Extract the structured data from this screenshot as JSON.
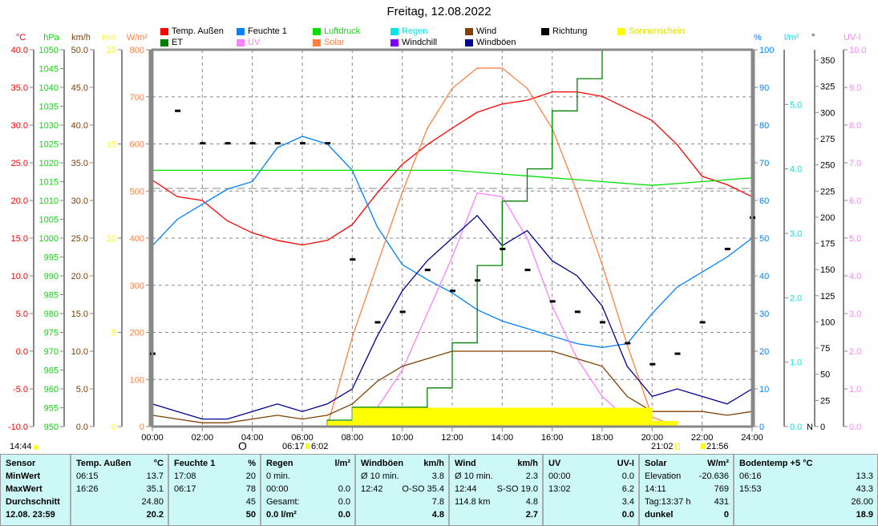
{
  "title": "Freitag, 12.08.2022",
  "legend": [
    {
      "label": "Temp. Außen",
      "color": "#ff0000"
    },
    {
      "label": "Feuchte 1",
      "color": "#0080ff"
    },
    {
      "label": "Luftdruck",
      "color": "#00e000"
    },
    {
      "label": "Regen",
      "color": "#00e8e8"
    },
    {
      "label": "Wind",
      "color": "#804000"
    },
    {
      "label": "Richtung",
      "color": "#000000"
    },
    {
      "label": "Sonnenschein",
      "color": "#ffff00"
    },
    {
      "label": "ET",
      "color": "#008000"
    },
    {
      "label": "UV",
      "color": "#ff80ff"
    },
    {
      "label": "Solar",
      "color": "#ff8040"
    },
    {
      "label": "Windchill",
      "color": "#8000ff"
    },
    {
      "label": "Windböen",
      "color": "#000090"
    }
  ],
  "chart_data": {
    "type": "line",
    "title": "Freitag, 12.08.2022",
    "grid": true,
    "legend_placement": "top",
    "x": [
      "00:00",
      "01:00",
      "02:00",
      "03:00",
      "04:00",
      "05:00",
      "06:00",
      "07:00",
      "08:00",
      "09:00",
      "10:00",
      "11:00",
      "12:00",
      "13:00",
      "14:00",
      "15:00",
      "16:00",
      "17:00",
      "18:00",
      "19:00",
      "20:00",
      "21:00",
      "22:00",
      "23:00",
      "24:00"
    ],
    "x_ticks": [
      "00:00",
      "02:00",
      "04:00",
      "06:00",
      "08:00",
      "10:00",
      "12:00",
      "14:00",
      "16:00",
      "18:00",
      "20:00",
      "22:00",
      "24:00"
    ],
    "axes": [
      {
        "unit": "°C",
        "min": -10,
        "max": 40,
        "step": 5,
        "dec": 1,
        "color": "#ff0000"
      },
      {
        "unit": "hPa",
        "min": 950,
        "max": 1050,
        "step": 5,
        "dec": 0,
        "color": "#00e000"
      },
      {
        "unit": "km/h",
        "min": 0,
        "max": 50,
        "step": 5,
        "dec": 1,
        "color": "#804000"
      },
      {
        "unit": "min",
        "min": 0,
        "max": 20,
        "step": 5,
        "dec": 0,
        "color": "#ffff00"
      },
      {
        "unit": "W/m²",
        "min": 0,
        "max": 800,
        "step": 100,
        "dec": 0,
        "color": "#ff8040"
      },
      {
        "unit": "%",
        "min": 0,
        "max": 100,
        "step": 10,
        "dec": 0,
        "color": "#0080ff"
      },
      {
        "unit": "l/m²",
        "min": 0,
        "max": 5.85,
        "step": 1,
        "dec": 1,
        "color": "#00e8e8"
      },
      {
        "unit": "°",
        "min": 0,
        "max": 360,
        "step": 25,
        "dec": 0,
        "color": "#000000",
        "last": 350,
        "extra": "N"
      },
      {
        "unit": "UV-I",
        "min": 0,
        "max": 10,
        "step": 1,
        "dec": 1,
        "color": "#ff80ff"
      }
    ],
    "series": [
      {
        "name": "Temp. Außen",
        "axis": 0,
        "color": "#ff0000",
        "values": [
          22.7,
          20.5,
          20,
          17.3,
          15.7,
          14.7,
          14.1,
          14.7,
          16.8,
          21,
          24.8,
          27.4,
          29.6,
          31.7,
          32.8,
          33.3,
          34.4,
          34.4,
          33.8,
          32.2,
          30.6,
          27.4,
          23.2,
          22.1,
          20.5
        ]
      },
      {
        "name": "Feuchte 1",
        "axis": 5,
        "color": "#0080ff",
        "values": [
          48,
          55,
          59,
          63,
          65,
          74,
          77,
          75,
          68,
          53,
          43,
          39,
          35.5,
          31,
          28,
          26,
          24,
          22,
          21,
          22,
          30,
          37,
          41,
          45,
          50
        ]
      },
      {
        "name": "Luftdruck",
        "axis": 1,
        "color": "#00e000",
        "values": [
          1018,
          1018,
          1018,
          1018,
          1018,
          1018,
          1018,
          1018,
          1018,
          1018,
          1018,
          1018,
          1018,
          1017.5,
          1017,
          1016.5,
          1016,
          1015.5,
          1015,
          1014.5,
          1014,
          1014.5,
          1015,
          1015.5,
          1016
        ]
      },
      {
        "name": "Solar",
        "axis": 4,
        "color": "#ff8040",
        "values": [
          0,
          0,
          0,
          0,
          0,
          0,
          0,
          0,
          190,
          344,
          497,
          633,
          718,
          761,
          761,
          718,
          633,
          497,
          344,
          174,
          20,
          0,
          0,
          0,
          0
        ]
      },
      {
        "name": "UV",
        "axis": 8,
        "color": "#ff80ff",
        "values": [
          0,
          0,
          0,
          0,
          0,
          0,
          0,
          0,
          0,
          0.5,
          1.5,
          3.0,
          4.5,
          6.2,
          6.1,
          5.0,
          3.2,
          1.8,
          0.8,
          0.2,
          0,
          0,
          0,
          0,
          0
        ]
      },
      {
        "name": "Windböen",
        "axis": 2,
        "color": "#000090",
        "values": [
          3,
          2,
          1,
          1,
          2,
          3,
          2,
          3,
          5,
          12,
          18,
          22,
          25,
          28,
          24,
          26,
          22,
          20,
          16,
          8,
          4,
          5,
          4,
          3,
          5
        ]
      },
      {
        "name": "Wind",
        "axis": 2,
        "color": "#804000",
        "values": [
          1.5,
          1,
          0.5,
          0.5,
          1,
          1.5,
          1,
          1.5,
          3,
          6,
          8,
          9,
          10,
          10,
          10,
          10,
          10,
          9,
          8,
          4,
          2,
          2,
          2,
          1.5,
          2
        ]
      },
      {
        "name": "ET",
        "axis": 6,
        "color": "#008000",
        "step": true,
        "values": [
          0,
          0,
          0,
          0,
          0,
          0,
          0,
          0.1,
          0.3,
          0.3,
          0.3,
          0.6,
          1.3,
          2.5,
          3.5,
          4.0,
          4.9,
          5.4,
          5.85,
          5.85,
          5.85,
          5.85,
          5.85,
          5.85,
          5.85
        ]
      },
      {
        "name": "Sonnenschein",
        "axis": 3,
        "color": "#ffff00",
        "bars": true,
        "values": [
          0,
          0,
          0,
          0,
          0,
          0,
          0,
          0.3,
          1,
          1,
          1,
          1,
          1,
          1,
          1,
          1,
          1,
          1,
          1,
          1,
          0.3,
          0,
          0,
          0,
          0
        ]
      },
      {
        "name": "Richtung",
        "axis": 7,
        "color": "#000000",
        "dots": true,
        "values": [
          70,
          302,
          271,
          271,
          271,
          271,
          271,
          271,
          160,
          100,
          110,
          150,
          130,
          140,
          170,
          150,
          120,
          110,
          100,
          80,
          60,
          70,
          100,
          170,
          200
        ]
      }
    ]
  },
  "astro": {
    "moonrise": "14:44",
    "moon_phase": "O",
    "sunrise_a": "06:17",
    "sunrise_b": "6:02",
    "sunset_a": "21:02",
    "moonset": "21:56"
  },
  "table": [
    {
      "rows": [
        [
          "Sensor",
          ""
        ],
        [
          "MinWert",
          ""
        ],
        [
          "MaxWert",
          ""
        ],
        [
          "Durchschnitt",
          ""
        ],
        [
          "12.08. 23:59",
          ""
        ]
      ]
    },
    {
      "rows": [
        [
          "Temp. Außen",
          "°C"
        ],
        [
          "06:15",
          "13.7"
        ],
        [
          "16:26",
          "35.1"
        ],
        [
          "",
          "24.80"
        ],
        [
          "",
          "20.2"
        ]
      ]
    },
    {
      "rows": [
        [
          "Feuchte 1",
          "%"
        ],
        [
          "17:08",
          "20"
        ],
        [
          "06:17",
          "78"
        ],
        [
          "",
          "45"
        ],
        [
          "",
          "50"
        ]
      ]
    },
    {
      "rows": [
        [
          "Regen",
          "l/m²"
        ],
        [
          "0 min.",
          ""
        ],
        [
          "00:00",
          "0.0"
        ],
        [
          "Gesamt:",
          "0.0"
        ],
        [
          "0.0 l/m²",
          "0.0"
        ]
      ]
    },
    {
      "rows": [
        [
          "Windböen",
          "km/h"
        ],
        [
          "Ø 10 min.",
          "3.8"
        ],
        [
          "12:42",
          "O-SO 35.4"
        ],
        [
          "",
          "7.8"
        ],
        [
          "",
          "4.8"
        ]
      ]
    },
    {
      "rows": [
        [
          "Wind",
          "km/h"
        ],
        [
          "Ø 10 min.",
          "2.3"
        ],
        [
          "12:44",
          "S-SO 19.0"
        ],
        [
          "114.8 km",
          "4.8"
        ],
        [
          "",
          "2.7"
        ]
      ]
    },
    {
      "rows": [
        [
          "UV",
          "UV-I"
        ],
        [
          "00:00",
          "0.0"
        ],
        [
          "13:02",
          "6.2"
        ],
        [
          "",
          "3.4"
        ],
        [
          "",
          "0.0"
        ]
      ]
    },
    {
      "rows": [
        [
          "Solar",
          "W/m²"
        ],
        [
          "Elevation",
          "-20.636"
        ],
        [
          "14:11",
          "769"
        ],
        [
          "Tag:13:37 h",
          "431"
        ],
        [
          "dunkel",
          "0"
        ]
      ]
    },
    {
      "rows": [
        [
          "Bodentemp +5  °C",
          ""
        ],
        [
          "06:16",
          "13.3"
        ],
        [
          "15:53",
          "43.3"
        ],
        [
          "",
          "26.00"
        ],
        [
          "",
          "18.9"
        ]
      ]
    }
  ]
}
